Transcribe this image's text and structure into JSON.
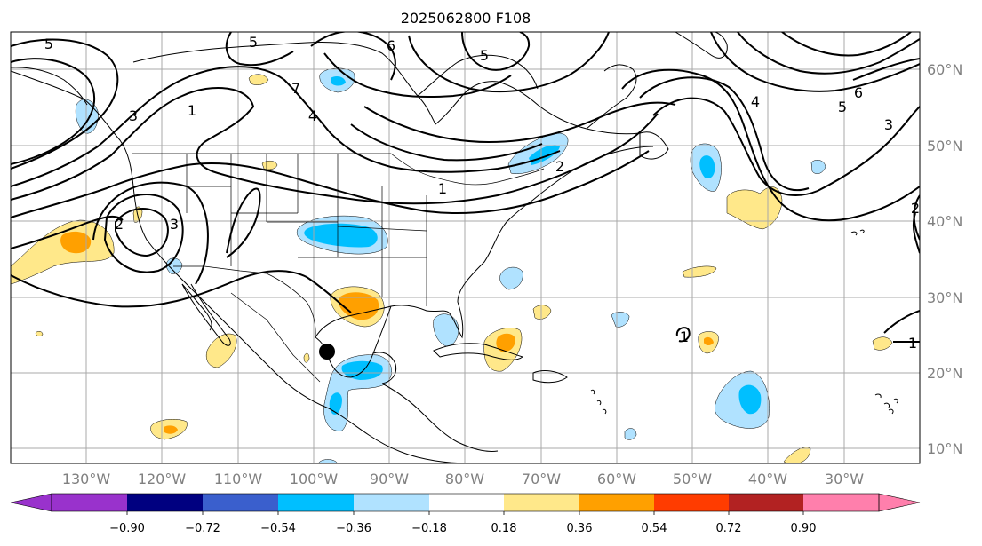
{
  "title": "2025062800 F108",
  "map": {
    "projection": "PlateCarree",
    "lon_range": [
      -140,
      -20
    ],
    "lat_range": [
      8,
      65
    ],
    "gridlines": true,
    "lon_labels": [
      "130°W",
      "120°W",
      "110°W",
      "100°W",
      "90°W",
      "80°W",
      "70°W",
      "60°W",
      "50°W",
      "40°W",
      "30°W"
    ],
    "lat_labels": [
      "60°N",
      "50°N",
      "40°N",
      "30°N",
      "20°N",
      "10°N"
    ],
    "marker": {
      "name": "storm-location",
      "lon": -99,
      "lat": 23,
      "color": "#000000"
    },
    "contour_labels": [
      "5",
      "5",
      "6",
      "5",
      "7",
      "4",
      "1",
      "3",
      "2",
      "3",
      "2",
      "1",
      "4",
      "5",
      "6",
      "3",
      "1",
      "1",
      "2"
    ]
  },
  "colorbar": {
    "ticks": [
      "−0.90",
      "−0.72",
      "−0.54",
      "−0.36",
      "−0.18",
      "0.18",
      "0.36",
      "0.54",
      "0.72",
      "0.90"
    ],
    "colors": [
      "#9932cc",
      "#000080",
      "#3a5fcd",
      "#00bfff",
      "#b0e2ff",
      "#ffffff",
      "#ffe88a",
      "#ffa000",
      "#ff3c00",
      "#b22222",
      "#ff7fac"
    ],
    "extend": "both"
  }
}
